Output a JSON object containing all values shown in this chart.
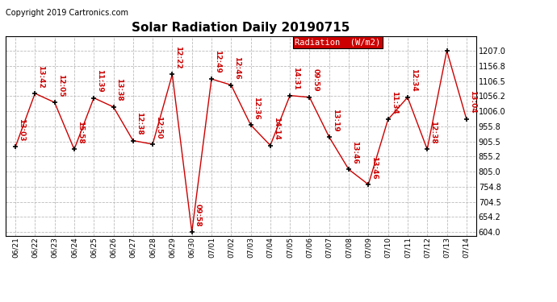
{
  "title": "Solar Radiation Daily 20190715",
  "copyright": "Copyright 2019 Cartronics.com",
  "legend_label": "Radiation  (W/m2)",
  "x_labels": [
    "06/21",
    "06/22",
    "06/23",
    "06/24",
    "06/25",
    "06/26",
    "06/27",
    "06/28",
    "06/29",
    "06/30",
    "07/01",
    "07/02",
    "07/03",
    "07/04",
    "07/05",
    "07/06",
    "07/07",
    "07/08",
    "07/09",
    "07/10",
    "07/11",
    "07/12",
    "07/13",
    "07/14"
  ],
  "y_values": [
    887,
    1065,
    1035,
    879,
    1050,
    1020,
    908,
    896,
    1128,
    604,
    1113,
    1093,
    960,
    892,
    1058,
    1052,
    920,
    812,
    762,
    978,
    1052,
    879,
    1207,
    980
  ],
  "time_labels": [
    "13:03",
    "13:42",
    "12:05",
    "15:58",
    "11:39",
    "13:38",
    "12:38",
    "12:50",
    "12:22",
    "09:58",
    "12:49",
    "12:46",
    "12:36",
    "14:14",
    "14:31",
    "09:59",
    "13:19",
    "13:46",
    "13:46",
    "11:34",
    "12:34",
    "12:38",
    "",
    "13:04"
  ],
  "y_min": 604.0,
  "y_max": 1207.0,
  "y_ticks": [
    604.0,
    654.2,
    704.5,
    754.8,
    805.0,
    855.2,
    905.5,
    955.8,
    1006.0,
    1056.2,
    1106.5,
    1156.8,
    1207.0
  ],
  "line_color": "#cc0000",
  "marker_color": "#000000",
  "background_color": "#ffffff",
  "grid_color": "#bbbbbb",
  "legend_bg": "#cc0000",
  "legend_text_color": "#ffffff",
  "annotation_color": "#cc0000",
  "title_fontsize": 11,
  "copyright_fontsize": 7
}
